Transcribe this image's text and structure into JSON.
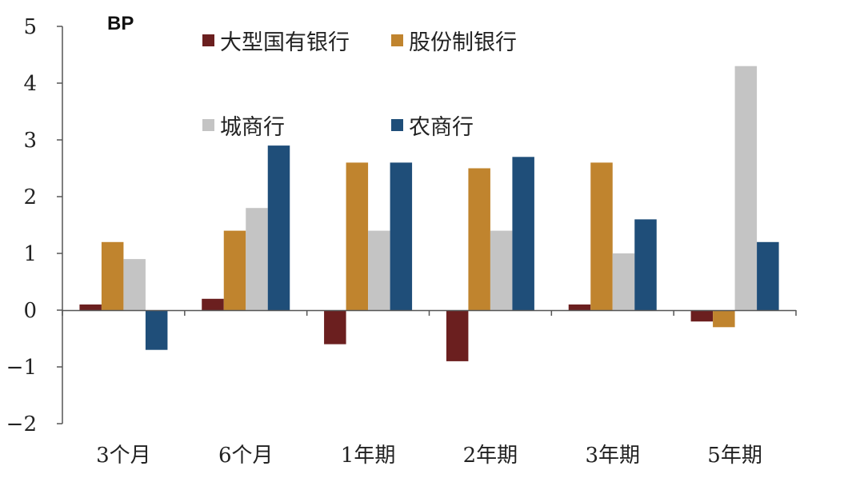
{
  "chart_data": {
    "type": "bar",
    "unit_label": "BP",
    "categories": [
      "3个月",
      "6个月",
      "1年期",
      "2年期",
      "3年期",
      "5年期"
    ],
    "series": [
      {
        "name": "大型国有银行",
        "color": "#6b1f1f",
        "values": [
          0.1,
          0.2,
          -0.6,
          -0.9,
          0.1,
          -0.2
        ]
      },
      {
        "name": "股份制银行",
        "color": "#c0842e",
        "values": [
          1.2,
          1.4,
          2.6,
          2.5,
          2.6,
          -0.3
        ]
      },
      {
        "name": "城商行",
        "color": "#c4c4c4",
        "values": [
          0.9,
          1.8,
          1.4,
          1.4,
          1.0,
          4.3
        ]
      },
      {
        "name": "农商行",
        "color": "#1f4e79",
        "values": [
          -0.7,
          2.9,
          2.6,
          2.7,
          1.6,
          1.2
        ]
      }
    ],
    "ylim": [
      -2,
      5
    ],
    "yticks": [
      "5",
      "4",
      "3",
      "2",
      "1",
      "0",
      "−1",
      "−2"
    ],
    "ytick_values": [
      5,
      4,
      3,
      2,
      1,
      0,
      -1,
      -2
    ],
    "grid": false,
    "legend_position": "top-left"
  }
}
